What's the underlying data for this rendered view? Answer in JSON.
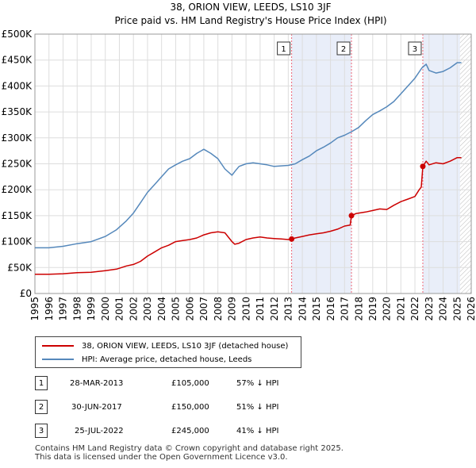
{
  "chart_data": {
    "type": "line",
    "title": "38, ORION VIEW, LEEDS, LS10 3JF",
    "subtitle": "Price paid vs. HM Land Registry's House Price Index (HPI)",
    "xlabel": "",
    "ylabel": "",
    "xlim": [
      1995,
      2026
    ],
    "ylim": [
      0,
      500000
    ],
    "y_ticks": [
      0,
      50000,
      100000,
      150000,
      200000,
      250000,
      300000,
      350000,
      400000,
      450000,
      500000
    ],
    "y_tick_labels": [
      "£0",
      "£50K",
      "£100K",
      "£150K",
      "£200K",
      "£250K",
      "£300K",
      "£350K",
      "£400K",
      "£450K",
      "£500K"
    ],
    "x_ticks": [
      1995,
      1996,
      1997,
      1998,
      1999,
      2000,
      2001,
      2002,
      2003,
      2004,
      2005,
      2006,
      2007,
      2008,
      2009,
      2010,
      2011,
      2012,
      2013,
      2014,
      2015,
      2016,
      2017,
      2018,
      2019,
      2020,
      2021,
      2022,
      2023,
      2024,
      2025,
      2026
    ],
    "x_tick_labels": [
      "1995",
      "1996",
      "1997",
      "1998",
      "1999",
      "2000",
      "2001",
      "2002",
      "2003",
      "2004",
      "2005",
      "2006",
      "2007",
      "2008",
      "2009",
      "2010",
      "2011",
      "2012",
      "2013",
      "2014",
      "2015",
      "2016",
      "2017",
      "2018",
      "2019",
      "2020",
      "2021",
      "2022",
      "2023",
      "2024",
      "2025",
      "2026"
    ],
    "grid": true,
    "hatched_after": 2025.2,
    "series": [
      {
        "name": "38, ORION VIEW, LEEDS, LS10 3JF (detached house)",
        "color": "#cc0000",
        "x": [
          1995.0,
          1996.0,
          1997.0,
          1998.0,
          1999.0,
          2000.0,
          2000.8,
          2001.5,
          2002.0,
          2002.5,
          2003.0,
          2003.5,
          2004.0,
          2004.5,
          2005.0,
          2005.5,
          2006.0,
          2006.5,
          2007.0,
          2007.5,
          2008.0,
          2008.5,
          2009.0,
          2009.2,
          2009.5,
          2010.0,
          2010.5,
          2011.0,
          2011.5,
          2012.0,
          2012.5,
          2013.0,
          2013.24,
          2013.5,
          2014.0,
          2014.5,
          2015.0,
          2015.5,
          2016.0,
          2016.5,
          2017.0,
          2017.4,
          2017.49,
          2017.8,
          2018.5,
          2019.0,
          2019.5,
          2020.0,
          2020.5,
          2021.0,
          2021.5,
          2022.0,
          2022.3,
          2022.45,
          2022.56,
          2022.8,
          2023.0,
          2023.5,
          2024.0,
          2024.5,
          2025.0,
          2025.3
        ],
        "y": [
          37000,
          37000,
          38000,
          40000,
          41000,
          44000,
          47000,
          53000,
          56000,
          62000,
          72000,
          80000,
          88000,
          93000,
          100000,
          102000,
          104000,
          107000,
          113000,
          117000,
          119000,
          117000,
          100000,
          95000,
          97000,
          104000,
          107000,
          109000,
          107000,
          106000,
          105000,
          104000,
          105000,
          107000,
          110000,
          113000,
          115000,
          117000,
          120000,
          124000,
          130000,
          132000,
          150000,
          154000,
          157000,
          160000,
          163000,
          162000,
          170000,
          177000,
          182000,
          187000,
          200000,
          205000,
          245000,
          255000,
          248000,
          252000,
          250000,
          255000,
          262000,
          262000
        ]
      },
      {
        "name": "HPI: Average price, detached house, Leeds",
        "color": "#5588bb",
        "x": [
          1995.0,
          1996.0,
          1997.0,
          1998.0,
          1999.0,
          2000.0,
          2000.8,
          2001.5,
          2002.0,
          2002.5,
          2003.0,
          2003.5,
          2004.0,
          2004.5,
          2005.0,
          2005.5,
          2006.0,
          2006.5,
          2007.0,
          2007.5,
          2008.0,
          2008.5,
          2009.0,
          2009.2,
          2009.5,
          2010.0,
          2010.5,
          2011.0,
          2011.5,
          2012.0,
          2012.5,
          2013.0,
          2013.5,
          2014.0,
          2014.5,
          2015.0,
          2015.5,
          2016.0,
          2016.5,
          2017.0,
          2017.5,
          2018.0,
          2018.5,
          2019.0,
          2019.5,
          2020.0,
          2020.5,
          2021.0,
          2021.5,
          2022.0,
          2022.5,
          2022.8,
          2023.0,
          2023.5,
          2024.0,
          2024.5,
          2025.0,
          2025.3
        ],
        "y": [
          88000,
          88000,
          91000,
          96000,
          100000,
          110000,
          123000,
          140000,
          155000,
          175000,
          195000,
          210000,
          225000,
          240000,
          248000,
          255000,
          260000,
          270000,
          278000,
          270000,
          260000,
          240000,
          228000,
          235000,
          245000,
          250000,
          252000,
          250000,
          248000,
          245000,
          246000,
          247000,
          250000,
          258000,
          265000,
          275000,
          282000,
          290000,
          300000,
          305000,
          312000,
          320000,
          333000,
          345000,
          352000,
          360000,
          370000,
          385000,
          400000,
          415000,
          435000,
          442000,
          430000,
          425000,
          428000,
          435000,
          445000,
          445000
        ]
      }
    ],
    "annotations": [
      {
        "label": "1",
        "x": 2013.24,
        "y": 105000
      },
      {
        "label": "2",
        "x": 2017.49,
        "y": 150000
      },
      {
        "label": "3",
        "x": 2022.56,
        "y": 245000
      }
    ]
  },
  "legend": {
    "property_label": "38, ORION VIEW, LEEDS, LS10 3JF (detached house)",
    "hpi_label": "HPI: Average price, detached house, Leeds"
  },
  "sales": [
    {
      "num": "1",
      "date": "28-MAR-2013",
      "price": "£105,000",
      "hpi": "57% ↓ HPI"
    },
    {
      "num": "2",
      "date": "30-JUN-2017",
      "price": "£150,000",
      "hpi": "51% ↓ HPI"
    },
    {
      "num": "3",
      "date": "25-JUL-2022",
      "price": "£245,000",
      "hpi": "41% ↓ HPI"
    }
  ],
  "footer": {
    "line1": "Contains HM Land Registry data © Crown copyright and database right 2025.",
    "line2": "This data is licensed under the Open Government Licence v3.0."
  }
}
